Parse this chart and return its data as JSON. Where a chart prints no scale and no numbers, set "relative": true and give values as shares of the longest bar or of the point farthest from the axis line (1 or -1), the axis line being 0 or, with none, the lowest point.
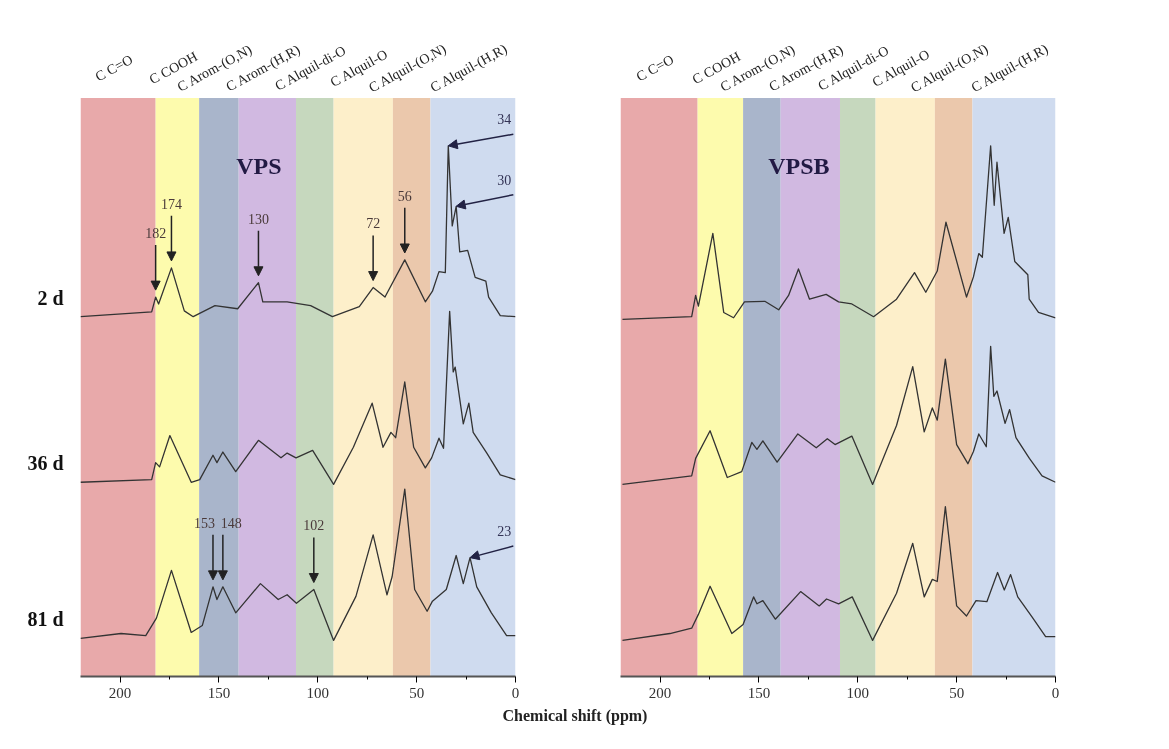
{
  "chart_data": [
    {
      "type": "line",
      "title": "VPS",
      "xlabel": "Chemical shift (ppm)",
      "relative": true,
      "xlim": [
        220,
        0
      ],
      "xticks": [
        200,
        {
          "value": 175,
          "label": null
        },
        150,
        {
          "value": 125,
          "label": null
        },
        100,
        {
          "value": 75,
          "label": null
        },
        50,
        {
          "value": 25,
          "label": null
        },
        0
      ],
      "bands": [
        {
          "axis": "x",
          "from": 220,
          "to": 182,
          "label": "C C=O",
          "color": "#e8a9aa"
        },
        {
          "axis": "x",
          "from": 182,
          "to": 160,
          "label": "C COOH",
          "color": "#fdfbad"
        },
        {
          "axis": "x",
          "from": 160,
          "to": 140,
          "label": "C Arom-(O,N)",
          "color": "#a9b5cb"
        },
        {
          "axis": "x",
          "from": 140,
          "to": 111,
          "label": "C Arom-(H,R)",
          "color": "#d1b9e1"
        },
        {
          "axis": "x",
          "from": 111,
          "to": 92,
          "label": "C Alquil-di-O",
          "color": "#c6d8be"
        },
        {
          "axis": "x",
          "from": 92,
          "to": 62,
          "label": "C Alquil-O",
          "color": "#fdefca"
        },
        {
          "axis": "x",
          "from": 62,
          "to": 43,
          "label": "C Alquil-(O,N)",
          "color": "#ebc8ac"
        },
        {
          "axis": "x",
          "from": 43,
          "to": 0,
          "label": "C Alquil-(H,R)",
          "color": "#cfdbef"
        }
      ],
      "series": [
        {
          "name": "2 d",
          "color": "#333333",
          "x": [
            220,
            184,
            182,
            180.5,
            174,
            167.5,
            163,
            152,
            140.5,
            130,
            127.8,
            115.5,
            103.6,
            92.6,
            79,
            72,
            66,
            56,
            45.6,
            42,
            38.7,
            35.5,
            34,
            32,
            30,
            28.2,
            24.2,
            20.4,
            15,
            13.6,
            7.7,
            0
          ],
          "values": [
            0.678,
            0.687,
            0.715,
            0.702,
            0.77,
            0.689,
            0.678,
            0.699,
            0.693,
            0.742,
            0.706,
            0.706,
            0.699,
            0.678,
            0.697,
            0.733,
            0.715,
            0.785,
            0.706,
            0.726,
            0.763,
            0.761,
            1.0,
            0.849,
            0.886,
            0.8,
            0.803,
            0.752,
            0.745,
            0.715,
            0.68,
            0.678
          ]
        },
        {
          "name": "36 d",
          "color": "#333333",
          "x": [
            220,
            184,
            182,
            180,
            174.8,
            164,
            159.7,
            153,
            151,
            148,
            141.5,
            130,
            118.6,
            115.5,
            111,
            102.6,
            92,
            82,
            72.5,
            67,
            63,
            60.6,
            56,
            51.5,
            45.6,
            42.4,
            38.7,
            36.4,
            33.3,
            31.5,
            30.5,
            26.4,
            23.6,
            21.4,
            14.5,
            7.7,
            0
          ],
          "values": [
            0.366,
            0.371,
            0.403,
            0.395,
            0.454,
            0.366,
            0.371,
            0.417,
            0.403,
            0.423,
            0.386,
            0.445,
            0.412,
            0.421,
            0.412,
            0.426,
            0.362,
            0.432,
            0.515,
            0.432,
            0.46,
            0.45,
            0.555,
            0.432,
            0.393,
            0.412,
            0.449,
            0.43,
            0.688,
            0.574,
            0.583,
            0.476,
            0.515,
            0.46,
            0.421,
            0.38,
            0.371
          ]
        },
        {
          "name": "81 d",
          "color": "#333333",
          "x": [
            220,
            199.5,
            187,
            181.6,
            174,
            164,
            158.4,
            153,
            151,
            148,
            141.5,
            129,
            120,
            115.5,
            110.8,
            102,
            92,
            80.7,
            72,
            65,
            62.4,
            56,
            51,
            44.7,
            42,
            35,
            30,
            26.4,
            23,
            19.6,
            12.2,
            4.5,
            0
          ],
          "values": [
            0.072,
            0.081,
            0.077,
            0.11,
            0.2,
            0.083,
            0.096,
            0.169,
            0.145,
            0.169,
            0.12,
            0.175,
            0.145,
            0.154,
            0.138,
            0.164,
            0.068,
            0.151,
            0.267,
            0.154,
            0.188,
            0.353,
            0.164,
            0.123,
            0.142,
            0.164,
            0.228,
            0.175,
            0.224,
            0.169,
            0.12,
            0.077,
            0.077
          ]
        }
      ],
      "annotations": [
        {
          "text": "182",
          "x": 182,
          "y": 0.715
        },
        {
          "text": "174",
          "x": 174,
          "y": 0.77
        },
        {
          "text": "130",
          "x": 130,
          "y": 0.742
        },
        {
          "text": "72",
          "x": 72,
          "y": 0.733
        },
        {
          "text": "56",
          "x": 56,
          "y": 0.785
        },
        {
          "text": "34",
          "x": 34,
          "y": 1.0
        },
        {
          "text": "30",
          "x": 30,
          "y": 0.886
        },
        {
          "text": "153",
          "x": 153,
          "y": 0.169
        },
        {
          "text": "148",
          "x": 148,
          "y": 0.169
        },
        {
          "text": "102",
          "x": 102,
          "y": 0.164
        },
        {
          "text": "23",
          "x": 23,
          "y": 0.224
        }
      ]
    },
    {
      "type": "line",
      "title": "VPSB",
      "relative": true,
      "xlim": [
        220,
        0
      ],
      "xticks": [
        200,
        {
          "value": 175,
          "label": null
        },
        150,
        {
          "value": 125,
          "label": null
        },
        100,
        {
          "value": 75,
          "label": null
        },
        50,
        {
          "value": 25,
          "label": null
        },
        0
      ],
      "bands": [
        {
          "axis": "x",
          "from": 220,
          "to": 181,
          "label": "C C=O",
          "color": "#e8a9aa"
        },
        {
          "axis": "x",
          "from": 181,
          "to": 158,
          "label": "C COOH",
          "color": "#fdfbad"
        },
        {
          "axis": "x",
          "from": 158,
          "to": 139,
          "label": "C Arom-(O,N)",
          "color": "#a9b5cb"
        },
        {
          "axis": "x",
          "from": 139,
          "to": 109,
          "label": "C Arom-(H,R)",
          "color": "#d1b9e1"
        },
        {
          "axis": "x",
          "from": 109,
          "to": 91,
          "label": "C Alquil-di-O",
          "color": "#c6d8be"
        },
        {
          "axis": "x",
          "from": 91,
          "to": 61,
          "label": "C Alquil-O",
          "color": "#fdefca"
        },
        {
          "axis": "x",
          "from": 61,
          "to": 42,
          "label": "C Alquil-(O,N)",
          "color": "#ebc8ac"
        },
        {
          "axis": "x",
          "from": 42,
          "to": 0,
          "label": "C Alquil-(H,R)",
          "color": "#cfdbef"
        }
      ],
      "series": [
        {
          "color": "#333333",
          "x": [
            219,
            184,
            182,
            180.6,
            173.3,
            167.8,
            162.8,
            157.3,
            147,
            140,
            135,
            130,
            124.4,
            116,
            109.7,
            103,
            92,
            80.4,
            71.3,
            65.6,
            59.8,
            55.4,
            45,
            41.5,
            38.8,
            37,
            32.8,
            31,
            29.6,
            26,
            23.9,
            20.6,
            14,
            13.3,
            8.6,
            0
          ],
          "values": [
            0.673,
            0.678,
            0.718,
            0.698,
            0.835,
            0.686,
            0.676,
            0.706,
            0.707,
            0.691,
            0.718,
            0.768,
            0.711,
            0.72,
            0.706,
            0.702,
            0.678,
            0.711,
            0.761,
            0.724,
            0.764,
            0.856,
            0.715,
            0.753,
            0.797,
            0.79,
            1.0,
            0.888,
            0.969,
            0.835,
            0.865,
            0.782,
            0.757,
            0.711,
            0.686,
            0.676
          ]
        },
        {
          "color": "#333333",
          "x": [
            219,
            184,
            182,
            174.7,
            166,
            158.7,
            153.6,
            151,
            148,
            140.8,
            130.3,
            121,
            115.4,
            111.5,
            103,
            92.5,
            80.4,
            72.2,
            66.4,
            62.3,
            59.8,
            55.7,
            50,
            44.3,
            41.5,
            38.8,
            35,
            32.8,
            31.2,
            29.6,
            25.5,
            23.2,
            20,
            13.2,
            6.8,
            0
          ],
          "values": [
            0.362,
            0.378,
            0.411,
            0.463,
            0.375,
            0.386,
            0.441,
            0.428,
            0.444,
            0.404,
            0.457,
            0.431,
            0.448,
            0.437,
            0.453,
            0.362,
            0.473,
            0.584,
            0.461,
            0.506,
            0.483,
            0.598,
            0.437,
            0.401,
            0.424,
            0.457,
            0.433,
            0.622,
            0.528,
            0.538,
            0.477,
            0.503,
            0.45,
            0.411,
            0.378,
            0.366
          ]
        },
        {
          "color": "#333333",
          "x": [
            219,
            195,
            184,
            180.6,
            174.7,
            163.7,
            158,
            152.7,
            151,
            148,
            141.7,
            128.9,
            119.5,
            115.8,
            109.7,
            102.8,
            92.5,
            80.4,
            72.2,
            66.4,
            62.3,
            59.8,
            55.7,
            50,
            45,
            40.2,
            34.7,
            29.3,
            25.9,
            22.7,
            19.1,
            11.8,
            5,
            0
          ],
          "values": [
            0.068,
            0.081,
            0.091,
            0.117,
            0.17,
            0.081,
            0.098,
            0.15,
            0.137,
            0.143,
            0.108,
            0.16,
            0.133,
            0.146,
            0.137,
            0.15,
            0.068,
            0.157,
            0.251,
            0.15,
            0.183,
            0.179,
            0.32,
            0.133,
            0.114,
            0.143,
            0.141,
            0.196,
            0.163,
            0.192,
            0.15,
            0.112,
            0.075,
            0.075
          ]
        }
      ]
    }
  ]
}
